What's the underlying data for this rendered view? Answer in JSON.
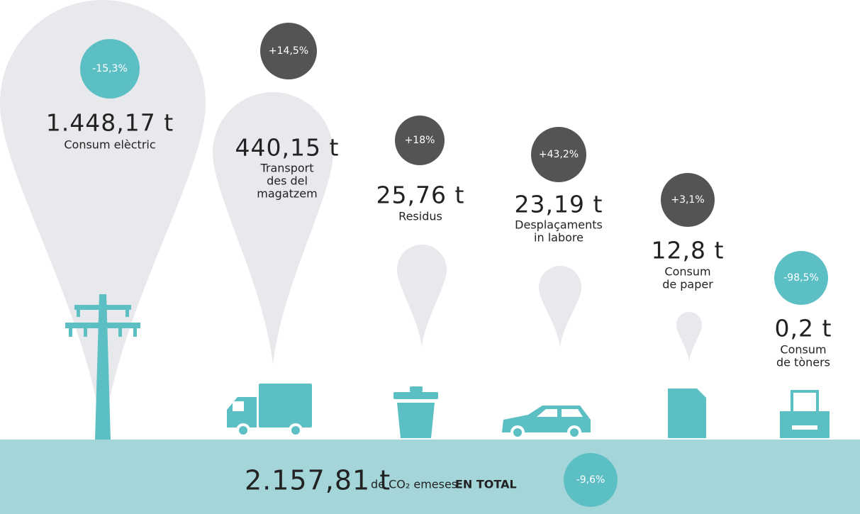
{
  "items": [
    {
      "change": "-15,3%",
      "value": "1.448,17 t",
      "label": [
        "Consum elèctric"
      ]
    },
    {
      "change": "+14,5%",
      "value": "440,15 t",
      "label": [
        "Transport",
        "des del",
        "magatzem"
      ]
    },
    {
      "change": "+18%",
      "value": "25,76 t",
      "label": [
        "Residus"
      ]
    },
    {
      "change": "+43,2%",
      "value": "23,19 t",
      "label": [
        "Desplaçaments",
        "in labore"
      ]
    },
    {
      "change": "+3,1%",
      "value": "12,8 t",
      "label": [
        "Consum",
        "de paper"
      ]
    },
    {
      "change": "-98,5%",
      "value": "0,2 t",
      "label": [
        "Consum",
        "de tòners"
      ]
    }
  ],
  "total": {
    "value": "2.157,81 t",
    "unit": "de CO₂ emeses",
    "emphasis": "EN TOTAL",
    "change": "-9,6%"
  }
}
